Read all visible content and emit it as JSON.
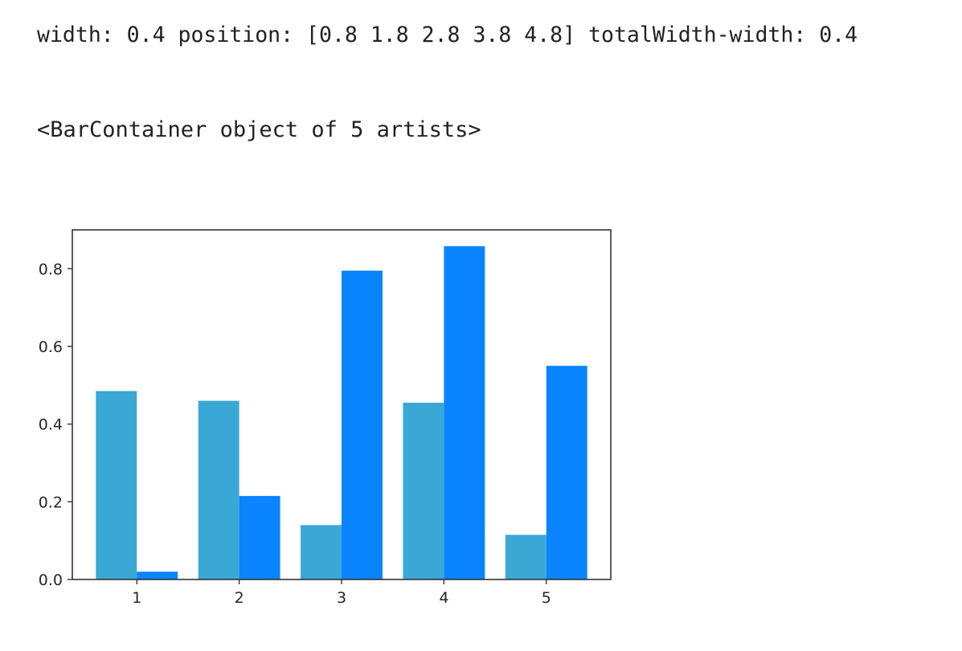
{
  "output": {
    "line1": "width: 0.4 position: [0.8 1.8 2.8 3.8 4.8] totalWidth-width: 0.4",
    "line2": "<BarContainer object of 5 artists>"
  },
  "chart_data": {
    "type": "bar",
    "categories": [
      "1",
      "2",
      "3",
      "4",
      "5"
    ],
    "x": [
      1,
      2,
      3,
      4,
      5
    ],
    "xticks": [
      1,
      2,
      3,
      4,
      5
    ],
    "xlim": [
      0.37,
      5.63
    ],
    "ylim": [
      0.0,
      0.9
    ],
    "yticks": [
      0.0,
      0.2,
      0.4,
      0.6,
      0.8
    ],
    "ytick_labels": [
      "0.0",
      "0.2",
      "0.4",
      "0.6",
      "0.8"
    ],
    "bar_width": 0.4,
    "grid": false,
    "title": "",
    "xlabel": "",
    "ylabel": "",
    "series": [
      {
        "values": [
          0.485,
          0.46,
          0.14,
          0.455,
          0.115
        ],
        "color": "#3aa8d4"
      },
      {
        "values": [
          0.02,
          0.215,
          0.795,
          0.858,
          0.55
        ],
        "color": "#0a84ff"
      }
    ]
  }
}
